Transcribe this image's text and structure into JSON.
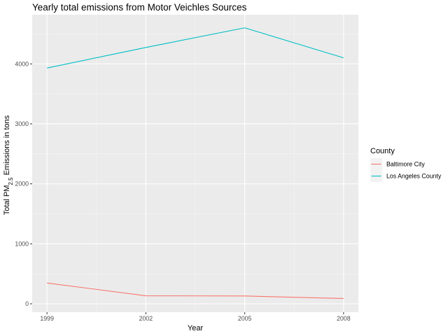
{
  "chart_data": {
    "type": "line",
    "title": "Yearly total emissions from Motor Veichles Sources",
    "xlabel": "Year",
    "ylabel": {
      "prefix": "Total PM",
      "subscript": "2.5",
      "suffix": " Emissions in tons"
    },
    "x": [
      1999,
      2002,
      2005,
      2008
    ],
    "x_ticks": [
      "1999",
      "2002",
      "2005",
      "2008"
    ],
    "y_ticks": [
      0,
      1000,
      2000,
      3000,
      4000
    ],
    "ylim": [
      -140,
      4820
    ],
    "xlim": [
      1998.55,
      2008.45
    ],
    "grid": true,
    "legend": {
      "title": "County",
      "placement": "right"
    },
    "series": [
      {
        "name": "Baltimore City",
        "color": "#F8766D",
        "values": [
          347,
          134,
          130,
          88
        ]
      },
      {
        "name": "Los Angeles County",
        "color": "#00BFC4",
        "values": [
          3931,
          4274,
          4601,
          4101
        ]
      }
    ]
  }
}
